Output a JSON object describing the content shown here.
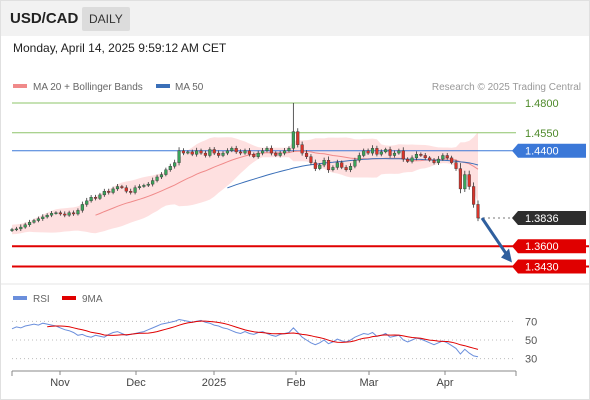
{
  "header": {
    "symbol": "USD/CAD",
    "timeframe": "DAILY"
  },
  "datetime": "Monday, April 14, 2025 9:59:12 AM CET",
  "legend": {
    "bb": "MA 20 + Bollinger Bands",
    "ma50": "MA 50",
    "credit": "Research © 2025 Trading Central"
  },
  "rsi_legend": {
    "rsi": "RSI",
    "ma9": "9MA"
  },
  "colors": {
    "up_candle": "#3aa35a",
    "down_candle": "#d9342b",
    "bollinger": "#fdd6d6",
    "ma20": "#f08a8a",
    "ma50": "#3a6fb8",
    "resistance": "#8dc46a",
    "pivot": "#3b78d8",
    "support": "#e00000",
    "last_price": "#2e2e2e",
    "rsi": "#6b8fdc",
    "rsi_ma": "#e00000",
    "arrow": "#2f5f9e"
  },
  "chart_data": [
    {
      "type": "candlestick",
      "x_ticks": [
        "Nov",
        "Dec",
        "2025",
        "Feb",
        "Mar",
        "Apr"
      ],
      "ylim": [
        1.33,
        1.485
      ],
      "levels": [
        {
          "value": 1.48,
          "label": "1.4800",
          "kind": "resistance"
        },
        {
          "value": 1.455,
          "label": "1.4550",
          "kind": "resistance"
        },
        {
          "value": 1.44,
          "label": "1.4400",
          "kind": "pivot"
        },
        {
          "value": 1.3836,
          "label": "1.3836",
          "kind": "last"
        },
        {
          "value": 1.36,
          "label": "1.3600",
          "kind": "support"
        },
        {
          "value": 1.343,
          "label": "1.3430",
          "kind": "support"
        }
      ],
      "close": [
        1.374,
        1.3745,
        1.376,
        1.378,
        1.38,
        1.3815,
        1.383,
        1.3845,
        1.386,
        1.3875,
        1.388,
        1.387,
        1.386,
        1.388,
        1.387,
        1.39,
        1.395,
        1.398,
        1.401,
        1.4,
        1.403,
        1.406,
        1.405,
        1.408,
        1.41,
        1.409,
        1.406,
        1.405,
        1.409,
        1.41,
        1.411,
        1.412,
        1.415,
        1.418,
        1.42,
        1.424,
        1.427,
        1.43,
        1.44,
        1.438,
        1.439,
        1.437,
        1.44,
        1.438,
        1.436,
        1.441,
        1.438,
        1.436,
        1.438,
        1.44,
        1.442,
        1.439,
        1.438,
        1.44,
        1.437,
        1.435,
        1.438,
        1.44,
        1.442,
        1.438,
        1.436,
        1.438,
        1.44,
        1.442,
        1.456,
        1.445,
        1.438,
        1.435,
        1.43,
        1.425,
        1.428,
        1.432,
        1.424,
        1.426,
        1.43,
        1.426,
        1.424,
        1.427,
        1.432,
        1.436,
        1.44,
        1.438,
        1.442,
        1.437,
        1.439,
        1.441,
        1.436,
        1.438,
        1.44,
        1.433,
        1.431,
        1.434,
        1.437,
        1.436,
        1.434,
        1.432,
        1.43,
        1.433,
        1.436,
        1.434,
        1.43,
        1.425,
        1.408,
        1.42,
        1.41,
        1.395,
        1.3836
      ],
      "ma20": [
        null,
        null,
        null,
        null,
        null,
        null,
        null,
        null,
        null,
        null,
        null,
        null,
        null,
        null,
        null,
        null,
        null,
        null,
        null,
        1.386,
        1.3874,
        1.389,
        1.3904,
        1.3919,
        1.3934,
        1.3948,
        1.396,
        1.397,
        1.3982,
        1.3993,
        1.4005,
        1.4018,
        1.4032,
        1.4047,
        1.4063,
        1.408,
        1.4096,
        1.4112,
        1.4132,
        1.4151,
        1.4169,
        1.4185,
        1.4203,
        1.4218,
        1.4231,
        1.4247,
        1.4263,
        1.4278,
        1.4292,
        1.4307,
        1.4321,
        1.4334,
        1.4345,
        1.4356,
        1.4365,
        1.4371,
        1.4377,
        1.4382,
        1.4383,
        1.4383,
        1.4382,
        1.4382,
        1.4382,
        1.4384,
        1.4393,
        1.4396,
        1.4395,
        1.4394,
        1.439,
        1.4382,
        1.4377,
        1.4374,
        1.4367,
        1.436,
        1.4356,
        1.4351,
        1.4344,
        1.4338,
        1.4335,
        1.4333,
        1.4332,
        1.4332,
        1.4333,
        1.4332,
        1.4334,
        1.4337,
        1.4336,
        1.4336,
        1.4336,
        1.4334,
        1.4322,
        1.4316,
        1.4316,
        1.4317,
        1.4321,
        1.4324,
        1.4325,
        1.4325,
        1.4328,
        1.4332,
        1.4329,
        1.4322,
        1.4307,
        1.4301,
        1.429,
        1.4269,
        1.4245
      ],
      "ma50": [
        null,
        null,
        null,
        null,
        null,
        null,
        null,
        null,
        null,
        null,
        null,
        null,
        null,
        null,
        null,
        null,
        null,
        null,
        null,
        null,
        null,
        null,
        null,
        null,
        null,
        null,
        null,
        null,
        null,
        null,
        null,
        null,
        null,
        null,
        null,
        null,
        null,
        null,
        null,
        null,
        null,
        null,
        null,
        null,
        null,
        null,
        null,
        null,
        null,
        1.4088,
        1.4102,
        1.4115,
        1.4127,
        1.4139,
        1.415,
        1.4161,
        1.4173,
        1.4184,
        1.4196,
        1.4206,
        1.4216,
        1.4226,
        1.4235,
        1.4244,
        1.4255,
        1.4263,
        1.4271,
        1.4277,
        1.4282,
        1.4287,
        1.4291,
        1.4297,
        1.43,
        1.4303,
        1.4307,
        1.431,
        1.4314,
        1.4318,
        1.4321,
        1.4324,
        1.4328,
        1.433,
        1.4332,
        1.4334,
        1.4334,
        1.4334,
        1.4333,
        1.4333,
        1.4333,
        1.4331,
        1.4328,
        1.4328,
        1.4327,
        1.4327,
        1.4325,
        1.4323,
        1.4321,
        1.432,
        1.432,
        1.4318,
        1.4315,
        1.4312,
        1.4306,
        1.4304,
        1.4298,
        1.429,
        1.428
      ]
    },
    {
      "type": "line",
      "y_ticks": [
        70,
        50,
        30
      ],
      "ylim": [
        20,
        80
      ],
      "series": [
        {
          "name": "RSI",
          "values": [
            62,
            64,
            63,
            65,
            66,
            67,
            66,
            68,
            67,
            66,
            65,
            63,
            61,
            60,
            58,
            55,
            56,
            54,
            53,
            55,
            54,
            53,
            56,
            58,
            59,
            57,
            55,
            56,
            57,
            58,
            59,
            61,
            63,
            65,
            67,
            68,
            69,
            70,
            72,
            71,
            70,
            69,
            70,
            71,
            69,
            68,
            66,
            65,
            63,
            62,
            60,
            58,
            57,
            59,
            57,
            56,
            58,
            59,
            57,
            55,
            54,
            56,
            57,
            58,
            63,
            58,
            53,
            50,
            47,
            45,
            47,
            50,
            46,
            48,
            51,
            49,
            48,
            50,
            53,
            55,
            57,
            56,
            58,
            54,
            55,
            57,
            53,
            54,
            55,
            50,
            48,
            50,
            52,
            51,
            49,
            47,
            45,
            47,
            49,
            47,
            44,
            41,
            35,
            40,
            36,
            33,
            32
          ]
        },
        {
          "name": "9MA",
          "values": [
            null,
            null,
            null,
            null,
            null,
            null,
            null,
            null,
            64.2,
            64.7,
            65.0,
            65.0,
            64.7,
            64.1,
            63.1,
            61.9,
            60.9,
            59.7,
            58.3,
            57.5,
            56.6,
            55.4,
            55.1,
            54.9,
            55.3,
            55.6,
            55.6,
            56.1,
            56.8,
            57.2,
            57.3,
            57.4,
            58.0,
            59.0,
            60.3,
            61.6,
            62.9,
            64.3,
            65.9,
            67.3,
            68.3,
            69.0,
            69.8,
            70.2,
            70.2,
            69.8,
            69.4,
            68.7,
            67.9,
            66.8,
            65.3,
            63.8,
            62.3,
            60.8,
            59.8,
            58.8,
            58.3,
            57.9,
            57.4,
            56.9,
            56.8,
            56.9,
            56.8,
            57.3,
            57.5,
            56.9,
            56.0,
            55.5,
            54.6,
            53.4,
            52.6,
            51.4,
            49.8,
            48.4,
            47.5,
            47.4,
            47.8,
            48.2,
            49.1,
            50.8,
            51.8,
            52.4,
            53.6,
            54.2,
            55.0,
            55.5,
            55.3,
            55.4,
            55.2,
            54.4,
            53.4,
            52.7,
            52.3,
            51.8,
            50.9,
            49.9,
            49.5,
            48.8,
            48.5,
            48.4,
            47.6,
            46.5,
            44.9,
            43.9,
            42.5,
            41.2,
            39.9
          ]
        }
      ]
    }
  ]
}
